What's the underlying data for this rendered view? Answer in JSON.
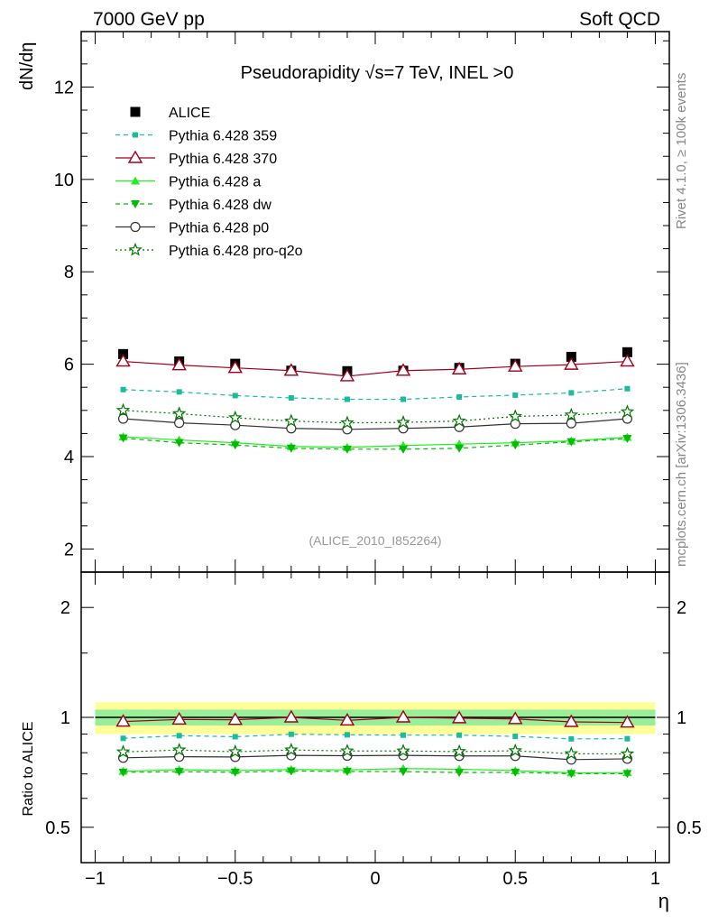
{
  "header": {
    "left": "7000 GeV pp",
    "right": "Soft QCD"
  },
  "side_text": {
    "top": "Rivet 4.1.0, ≥ 100k events",
    "bottom": "mcplots.cern.ch [arXiv:1306.3436]"
  },
  "chart_data": [
    {
      "type": "line",
      "title": "Pseudorapidity √s=7 TeV, INEL >0",
      "watermark": "(ALICE_2010_I852264)",
      "xlabel": "η",
      "ylabel": "dN/dη",
      "xlim": [
        -1.05,
        1.05
      ],
      "ylim": [
        1.5,
        13.2
      ],
      "yticks": [
        2,
        4,
        6,
        8,
        10,
        12
      ],
      "ytick_labels": [
        "2",
        "4",
        "6",
        "8",
        "10",
        "12"
      ],
      "x": [
        -0.9,
        -0.7,
        -0.5,
        -0.3,
        -0.1,
        0.1,
        0.3,
        0.5,
        0.7,
        0.9
      ],
      "series": [
        {
          "name": "ALICE",
          "values": [
            6.22,
            6.06,
            6.01,
            5.86,
            5.85,
            5.86,
            5.92,
            6.01,
            6.16,
            6.26
          ],
          "color": "#000000"
        },
        {
          "name": "Pythia 6.428 359",
          "values": [
            5.45,
            5.4,
            5.32,
            5.27,
            5.24,
            5.24,
            5.29,
            5.33,
            5.38,
            5.47
          ],
          "color": "#1abc9c"
        },
        {
          "name": "Pythia 6.428 370",
          "values": [
            6.06,
            5.98,
            5.92,
            5.86,
            5.74,
            5.86,
            5.89,
            5.95,
            5.99,
            6.06
          ],
          "color": "#a0001a"
        },
        {
          "name": "Pythia 6.428 a",
          "values": [
            4.43,
            4.36,
            4.3,
            4.22,
            4.2,
            4.24,
            4.27,
            4.3,
            4.34,
            4.42
          ],
          "color": "#22ee22"
        },
        {
          "name": "Pythia 6.428 dw",
          "values": [
            4.4,
            4.3,
            4.25,
            4.18,
            4.16,
            4.16,
            4.18,
            4.25,
            4.32,
            4.39
          ],
          "color": "#00bb00"
        },
        {
          "name": "Pythia 6.428 p0",
          "values": [
            4.82,
            4.73,
            4.68,
            4.61,
            4.59,
            4.61,
            4.64,
            4.71,
            4.72,
            4.82
          ],
          "color": "#333333"
        },
        {
          "name": "Pythia 6.428 pro-q2o",
          "values": [
            5.0,
            4.93,
            4.84,
            4.77,
            4.73,
            4.74,
            4.77,
            4.87,
            4.9,
            4.97
          ],
          "color": "#007700"
        }
      ]
    },
    {
      "type": "line",
      "title": "",
      "xlabel": "η",
      "ylabel": "Ratio to ALICE",
      "xlim": [
        -1.05,
        1.05
      ],
      "ylim": [
        0.4,
        2.5
      ],
      "yscale": "log",
      "xticks": [
        -1,
        -0.5,
        0,
        0.5,
        1
      ],
      "xtick_labels": [
        "−1",
        "−0.5",
        "0",
        "0.5",
        "1"
      ],
      "yticks": [
        0.5,
        1,
        2
      ],
      "ytick_labels": [
        "0.5",
        "1",
        "2"
      ],
      "band_inner": 0.05,
      "band_outer": 0.1,
      "x": [
        -0.9,
        -0.7,
        -0.5,
        -0.3,
        -0.1,
        0.1,
        0.3,
        0.5,
        0.7,
        0.9
      ],
      "series": [
        {
          "name": "ALICE",
          "values": [
            1,
            1,
            1,
            1,
            1,
            1,
            1,
            1,
            1,
            1
          ],
          "color": "#000000"
        },
        {
          "name": "Pythia 6.428 359",
          "values": [
            0.876,
            0.891,
            0.885,
            0.899,
            0.896,
            0.894,
            0.894,
            0.887,
            0.873,
            0.874
          ],
          "color": "#1abc9c"
        },
        {
          "name": "Pythia 6.428 370",
          "values": [
            0.974,
            0.987,
            0.985,
            1.0,
            0.981,
            1.0,
            0.995,
            0.99,
            0.972,
            0.968
          ],
          "color": "#a0001a"
        },
        {
          "name": "Pythia 6.428 a",
          "values": [
            0.712,
            0.719,
            0.715,
            0.72,
            0.718,
            0.724,
            0.721,
            0.715,
            0.705,
            0.706
          ],
          "color": "#22ee22"
        },
        {
          "name": "Pythia 6.428 dw",
          "values": [
            0.707,
            0.71,
            0.707,
            0.713,
            0.711,
            0.71,
            0.706,
            0.707,
            0.701,
            0.701
          ],
          "color": "#00bb00"
        },
        {
          "name": "Pythia 6.428 p0",
          "values": [
            0.775,
            0.78,
            0.779,
            0.787,
            0.785,
            0.787,
            0.784,
            0.784,
            0.766,
            0.77
          ],
          "color": "#333333"
        },
        {
          "name": "Pythia 6.428 pro-q2o",
          "values": [
            0.804,
            0.814,
            0.805,
            0.814,
            0.809,
            0.809,
            0.806,
            0.81,
            0.795,
            0.794
          ],
          "color": "#007700"
        }
      ]
    }
  ]
}
